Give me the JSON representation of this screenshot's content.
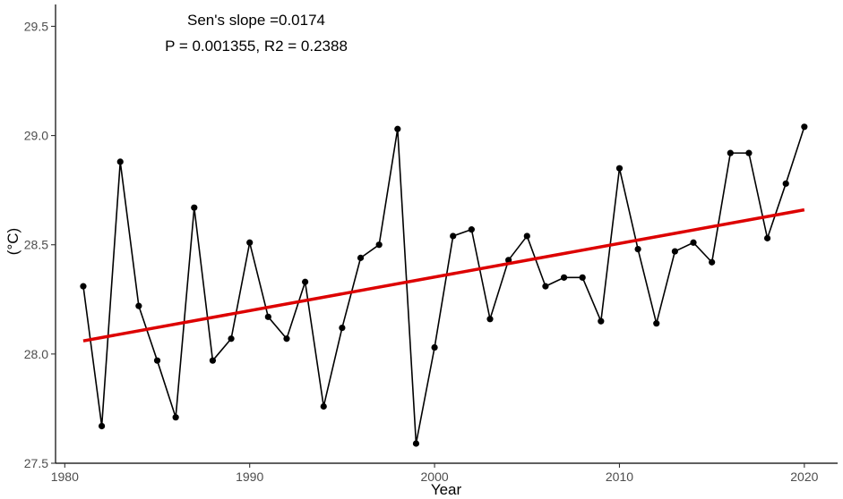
{
  "chart_data": {
    "type": "line",
    "xlabel": "Year",
    "ylabel": "(°C)",
    "xlim": [
      1979.5,
      2021.8
    ],
    "ylim": [
      27.5,
      29.6
    ],
    "grid": false,
    "x_ticks": [
      1980,
      1990,
      2000,
      2010,
      2020
    ],
    "y_ticks": [
      27.5,
      28.0,
      28.5,
      29.0,
      29.5
    ],
    "x_tick_labels": [
      "1980",
      "1990",
      "2000",
      "2010",
      "2020"
    ],
    "y_tick_labels": [
      "27.5",
      "28.0",
      "28.5",
      "29.0",
      "29.5"
    ],
    "annotation": {
      "line1": "Sen's slope =0.0174",
      "line2": "P = 0.001355, R2 = 0.2388"
    },
    "series": [
      {
        "type": "line-points",
        "color": "#000000",
        "x": [
          1981,
          1982,
          1983,
          1984,
          1985,
          1986,
          1987,
          1988,
          1989,
          1990,
          1991,
          1992,
          1993,
          1994,
          1995,
          1996,
          1997,
          1998,
          1999,
          2000,
          2001,
          2002,
          2003,
          2004,
          2005,
          2006,
          2007,
          2008,
          2009,
          2010,
          2011,
          2012,
          2013,
          2014,
          2015,
          2016,
          2017,
          2018,
          2019,
          2020
        ],
        "y": [
          28.31,
          27.67,
          28.88,
          28.22,
          27.97,
          27.71,
          28.67,
          27.97,
          28.07,
          28.51,
          28.17,
          28.07,
          28.33,
          27.76,
          28.12,
          28.44,
          28.5,
          29.03,
          27.59,
          28.03,
          28.54,
          28.57,
          28.16,
          28.43,
          28.54,
          28.31,
          28.35,
          28.35,
          28.15,
          28.85,
          28.48,
          28.14,
          28.47,
          28.51,
          28.42,
          28.92,
          28.92,
          28.53,
          28.78,
          29.04
        ]
      },
      {
        "type": "trend",
        "color": "#dd0000",
        "x": [
          1981,
          2020
        ],
        "y": [
          28.06,
          28.66
        ]
      }
    ]
  }
}
